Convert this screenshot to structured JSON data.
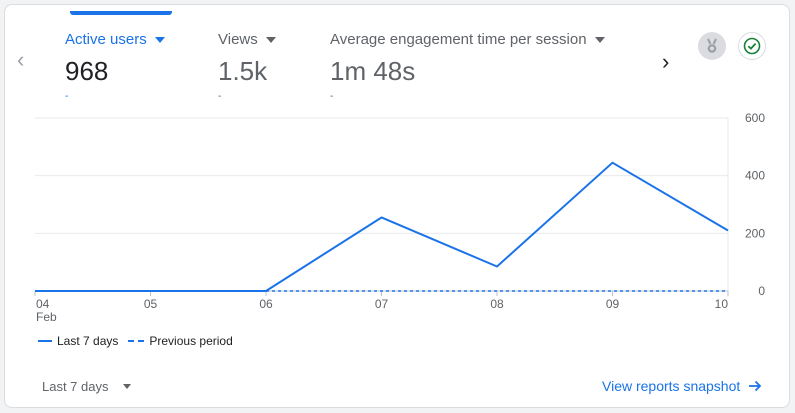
{
  "metrics": [
    {
      "label": "Active users",
      "value": "968",
      "change": "-"
    },
    {
      "label": "Views",
      "value": "1.5k",
      "change": "-"
    },
    {
      "label": "Average engagement time per session",
      "value": "1m 48s",
      "change": "-"
    }
  ],
  "icons": {
    "prev": "chevron-left-icon",
    "next": "chevron-right-icon",
    "medal": "medal-icon",
    "check": "check-circle-icon",
    "arrow": "arrow-right-icon"
  },
  "colors": {
    "accent": "#1a73e8",
    "grid": "#e8eaed",
    "check": "#188038"
  },
  "chart_data": {
    "type": "line",
    "categories": [
      "04",
      "05",
      "06",
      "07",
      "08",
      "09",
      "10"
    ],
    "month_label": "Feb",
    "series": [
      {
        "name": "Last 7 days",
        "style": "solid",
        "values": [
          0,
          0,
          0,
          255,
          85,
          445,
          210
        ]
      },
      {
        "name": "Previous period",
        "style": "dashed",
        "values": [
          null,
          null,
          0,
          0,
          0,
          0,
          0
        ]
      }
    ],
    "yticks": [
      "600",
      "400",
      "200",
      "0"
    ],
    "ylim": [
      0,
      600
    ],
    "y_axis_position": "right",
    "grid": true,
    "legend_position": "bottom-left"
  },
  "footer": {
    "date_range": "Last 7 days",
    "snapshot_link": "View reports snapshot"
  }
}
